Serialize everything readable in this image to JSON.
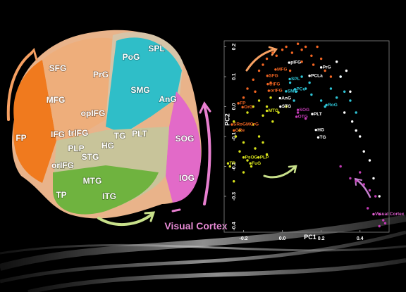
{
  "brain": {
    "labels": [
      "FP",
      "SFG",
      "MFG",
      "PrG",
      "PoG",
      "SPL",
      "SMG",
      "AnG",
      "opIFG",
      "IFG",
      "trIFG",
      "PLP",
      "orIFG",
      "STG",
      "HG",
      "TG",
      "PLT",
      "SOG",
      "IOG",
      "MTG",
      "TP",
      "ITG"
    ],
    "caption": "Visual Cortex"
  },
  "chart_data": {
    "type": "scatter",
    "xlabel": "PC1",
    "ylabel": "PC2",
    "xlim": [
      -0.3,
      0.55
    ],
    "ylim": [
      -0.42,
      0.22
    ],
    "xticks": [
      -0.2,
      {
        "value": 0.0,
        "label": "0.0"
      },
      0.2,
      0.4
    ],
    "yticks": [
      0.2,
      0.1,
      {
        "value": 0.0,
        "label": "0.0"
      },
      -0.1,
      -0.2,
      -0.3,
      -0.4
    ],
    "series": [
      {
        "color": "#f26522",
        "x": [
          -0.18,
          -0.15,
          -0.12,
          -0.1,
          -0.08,
          -0.05,
          -0.03,
          0.0,
          0.02,
          0.05,
          0.08,
          0.1,
          0.12,
          0.15,
          0.18,
          0.2,
          0.22,
          0.25,
          -0.2,
          -0.14,
          -0.06,
          0.04,
          0.1,
          0.16
        ],
        "y": [
          0.06,
          0.09,
          0.12,
          0.14,
          0.16,
          0.18,
          0.17,
          0.19,
          0.2,
          0.18,
          0.21,
          0.19,
          0.2,
          0.17,
          0.2,
          0.16,
          0.12,
          0.1,
          0.03,
          0.05,
          0.08,
          0.12,
          0.15,
          0.14
        ]
      },
      {
        "color": "#d7e21b",
        "x": [
          -0.25,
          -0.22,
          -0.2,
          -0.18,
          -0.15,
          -0.12,
          -0.1,
          -0.08,
          -0.05,
          -0.22,
          -0.18,
          -0.14,
          -0.1,
          -0.2,
          -0.16,
          -0.24,
          -0.27,
          -0.12,
          -0.06,
          -0.02,
          0.02,
          -0.08,
          -0.15,
          -0.25
        ],
        "y": [
          -0.05,
          -0.08,
          -0.12,
          -0.02,
          -0.06,
          -0.1,
          -0.03,
          0.0,
          -0.05,
          -0.15,
          -0.18,
          -0.14,
          -0.12,
          -0.22,
          -0.2,
          -0.1,
          -0.2,
          0.02,
          0.03,
          -0.02,
          0.0,
          -0.16,
          0.0,
          -0.25
        ]
      },
      {
        "color": "#2ec4d6",
        "x": [
          0.04,
          0.07,
          0.1,
          0.12,
          0.15,
          0.2,
          0.25,
          0.28,
          0.32,
          0.3,
          0.35,
          0.38,
          0.06,
          0.14,
          0.22
        ],
        "y": [
          0.08,
          0.05,
          0.1,
          0.06,
          0.04,
          0.02,
          0.06,
          0.03,
          0.05,
          0.1,
          0.02,
          -0.02,
          0.02,
          0.08,
          0.0
        ]
      },
      {
        "color": "#c33bb5",
        "x": [
          0.3,
          0.35,
          0.4,
          0.42,
          0.45,
          0.48,
          0.5,
          0.52,
          0.5,
          0.53,
          0.08,
          0.12,
          0.38,
          0.44
        ],
        "y": [
          -0.2,
          -0.24,
          -0.22,
          -0.26,
          -0.28,
          -0.3,
          -0.36,
          -0.38,
          -0.4,
          -0.39,
          -0.02,
          -0.04,
          -0.25,
          -0.34
        ]
      },
      {
        "color": "#ffffff",
        "x": [
          0.28,
          0.3,
          0.33,
          0.35,
          0.36,
          0.4,
          0.42,
          0.45,
          0.47,
          0.5,
          0.32,
          0.38
        ],
        "y": [
          0.15,
          0.1,
          0.12,
          0.05,
          -0.05,
          -0.1,
          -0.15,
          -0.18,
          -0.24,
          -0.3,
          -0.02,
          -0.08
        ]
      }
    ],
    "annotations": [
      {
        "text": "pIFG",
        "x": 0.035,
        "y": 0.147,
        "color": "#ffffff"
      },
      {
        "text": "PrG",
        "x": 0.2,
        "y": 0.131,
        "color": "#ffffff"
      },
      {
        "text": "PCLa",
        "x": 0.14,
        "y": 0.103,
        "color": "#ffffff"
      },
      {
        "text": "MFG",
        "x": -0.035,
        "y": 0.124,
        "color": "#f26522"
      },
      {
        "text": "SFG",
        "x": -0.077,
        "y": 0.103,
        "color": "#f26522"
      },
      {
        "text": "trIFG",
        "x": -0.075,
        "y": 0.075,
        "color": "#f26522"
      },
      {
        "text": "orIFG",
        "x": -0.07,
        "y": 0.053,
        "color": "#f26522"
      },
      {
        "text": "SPL",
        "x": 0.038,
        "y": 0.092,
        "color": "#2ec4d6"
      },
      {
        "text": "PCu",
        "x": 0.065,
        "y": 0.058,
        "color": "#2ec4d6"
      },
      {
        "text": "SMG",
        "x": 0.019,
        "y": 0.051,
        "color": "#2ec4d6"
      },
      {
        "text": "AnG",
        "x": -0.012,
        "y": 0.028,
        "color": "#ffffff"
      },
      {
        "text": "FP",
        "x": -0.227,
        "y": 0.011,
        "color": "#f26522"
      },
      {
        "text": "OrG",
        "x": -0.205,
        "y": -0.002,
        "color": "#f26522"
      },
      {
        "text": "MTG",
        "x": -0.08,
        "y": -0.014,
        "color": "#d7e21b"
      },
      {
        "text": "STG",
        "x": -0.01,
        "y": 0.0,
        "color": "#ffffff"
      },
      {
        "text": "SOG",
        "x": 0.08,
        "y": -0.011,
        "color": "#c33bb5"
      },
      {
        "text": "OTG",
        "x": 0.073,
        "y": -0.034,
        "color": "#c33bb5"
      },
      {
        "text": "PLT",
        "x": 0.154,
        "y": -0.025,
        "color": "#ffffff"
      },
      {
        "text": "RoG",
        "x": 0.227,
        "y": 0.005,
        "color": "#2ec4d6"
      },
      {
        "text": "HG",
        "x": 0.173,
        "y": -0.078,
        "color": "#ffffff"
      },
      {
        "text": "TG",
        "x": 0.185,
        "y": -0.103,
        "color": "#ffffff"
      },
      {
        "text": "SRoGMOrG",
        "x": -0.26,
        "y": -0.06,
        "color": "#f26522"
      },
      {
        "text": "GRe",
        "x": -0.25,
        "y": -0.08,
        "color": "#f26522"
      },
      {
        "text": "PsOG",
        "x": -0.2,
        "y": -0.17,
        "color": "#d7e21b"
      },
      {
        "text": "PLP",
        "x": -0.123,
        "y": -0.17,
        "color": "#d7e21b"
      },
      {
        "text": "FuG",
        "x": -0.165,
        "y": -0.19,
        "color": "#d7e21b"
      },
      {
        "text": "TP",
        "x": -0.28,
        "y": -0.19,
        "color": "#d7e21b"
      },
      {
        "text": "Visual Cortex",
        "x": 0.47,
        "y": -0.36,
        "color": "#e05fd0"
      }
    ]
  }
}
